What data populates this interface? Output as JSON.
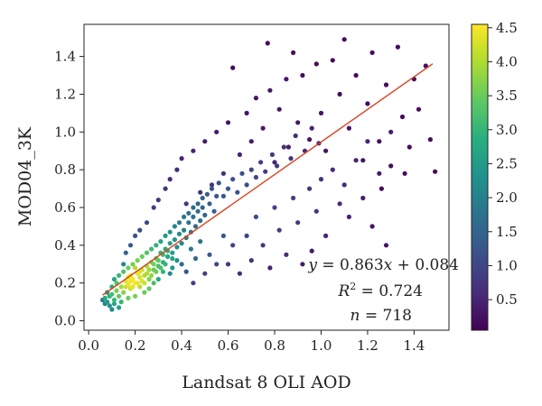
{
  "chart_data": {
    "type": "scatter",
    "title": "",
    "xlabel": "Landsat 8 OLI AOD",
    "ylabel": "MOD04_3K",
    "xlim": [
      -0.02,
      1.55
    ],
    "ylim": [
      -0.05,
      1.57
    ],
    "x_ticks": [
      0.0,
      0.2,
      0.4,
      0.6,
      0.8,
      1.0,
      1.2,
      1.4
    ],
    "x_tick_labels": [
      "0.0",
      "0.2",
      "0.4",
      "0.6",
      "0.8",
      "1.0",
      "1.2",
      "1.4"
    ],
    "y_ticks": [
      0.0,
      0.2,
      0.4,
      0.6,
      0.8,
      1.0,
      1.2,
      1.4
    ],
    "y_tick_labels": [
      "0.0",
      "0.2",
      "0.4",
      "0.6",
      "0.8",
      "1.0",
      "1.2",
      "1.4"
    ],
    "grid": false,
    "point_color": "viridis density",
    "regression": {
      "slope": 0.863,
      "intercept": 0.084,
      "x_range": [
        0.06,
        1.48
      ],
      "color": "#d9411e"
    },
    "annotations": [
      "y = 0.863x + 0.084",
      "R2 = 0.724",
      "n = 718"
    ],
    "colorbar": {
      "colormap": "viridis",
      "range": [
        0.05,
        4.55
      ],
      "ticks": [
        0.5,
        1.0,
        1.5,
        2.0,
        2.5,
        3.0,
        3.5,
        4.0,
        4.5
      ],
      "tick_labels": [
        "0.5",
        "1.0",
        "1.5",
        "2.0",
        "2.5",
        "3.0",
        "3.5",
        "4.0",
        "4.5"
      ]
    },
    "points": [
      [
        0.08,
        0.1,
        2.5
      ],
      [
        0.07,
        0.12,
        2.8
      ],
      [
        0.09,
        0.08,
        2.3
      ],
      [
        0.1,
        0.14,
        3.2
      ],
      [
        0.11,
        0.11,
        3.0
      ],
      [
        0.12,
        0.16,
        3.6
      ],
      [
        0.13,
        0.13,
        3.4
      ],
      [
        0.12,
        0.2,
        3.3
      ],
      [
        0.14,
        0.18,
        3.9
      ],
      [
        0.15,
        0.15,
        3.7
      ],
      [
        0.16,
        0.21,
        4.3
      ],
      [
        0.17,
        0.19,
        4.4
      ],
      [
        0.18,
        0.17,
        4.2
      ],
      [
        0.18,
        0.24,
        4.4
      ],
      [
        0.19,
        0.22,
        4.5
      ],
      [
        0.2,
        0.2,
        4.5
      ],
      [
        0.21,
        0.25,
        4.4
      ],
      [
        0.22,
        0.23,
        4.3
      ],
      [
        0.22,
        0.18,
        4.1
      ],
      [
        0.23,
        0.27,
        4.2
      ],
      [
        0.24,
        0.24,
        4.0
      ],
      [
        0.25,
        0.29,
        3.9
      ],
      [
        0.26,
        0.22,
        3.7
      ],
      [
        0.27,
        0.31,
        3.6
      ],
      [
        0.28,
        0.27,
        3.5
      ],
      [
        0.29,
        0.33,
        3.3
      ],
      [
        0.3,
        0.29,
        3.2
      ],
      [
        0.31,
        0.36,
        3.0
      ],
      [
        0.32,
        0.31,
        2.9
      ],
      [
        0.33,
        0.38,
        2.8
      ],
      [
        0.34,
        0.34,
        2.7
      ],
      [
        0.35,
        0.41,
        2.6
      ],
      [
        0.36,
        0.36,
        2.5
      ],
      [
        0.37,
        0.43,
        2.4
      ],
      [
        0.38,
        0.39,
        2.3
      ],
      [
        0.39,
        0.46,
        2.2
      ],
      [
        0.4,
        0.41,
        2.1
      ],
      [
        0.41,
        0.48,
        2.0
      ],
      [
        0.42,
        0.44,
        1.9
      ],
      [
        0.43,
        0.52,
        1.8
      ],
      [
        0.44,
        0.47,
        1.8
      ],
      [
        0.45,
        0.55,
        1.7
      ],
      [
        0.46,
        0.5,
        1.7
      ],
      [
        0.47,
        0.58,
        1.6
      ],
      [
        0.48,
        0.53,
        1.6
      ],
      [
        0.49,
        0.6,
        1.5
      ],
      [
        0.5,
        0.56,
        1.5
      ],
      [
        0.52,
        0.62,
        1.4
      ],
      [
        0.54,
        0.58,
        1.4
      ],
      [
        0.55,
        0.66,
        1.3
      ],
      [
        0.15,
        0.3,
        2.1
      ],
      [
        0.16,
        0.36,
        1.5
      ],
      [
        0.18,
        0.4,
        1.3
      ],
      [
        0.2,
        0.45,
        1.2
      ],
      [
        0.22,
        0.48,
        1.1
      ],
      [
        0.25,
        0.52,
        1.0
      ],
      [
        0.28,
        0.6,
        0.9
      ],
      [
        0.3,
        0.64,
        0.8
      ],
      [
        0.33,
        0.7,
        0.7
      ],
      [
        0.35,
        0.75,
        0.6
      ],
      [
        0.38,
        0.8,
        0.6
      ],
      [
        0.4,
        0.86,
        0.5
      ],
      [
        0.42,
        0.62,
        0.8
      ],
      [
        0.45,
        0.9,
        0.5
      ],
      [
        0.48,
        0.68,
        0.7
      ],
      [
        0.5,
        0.95,
        0.4
      ],
      [
        0.53,
        0.72,
        0.7
      ],
      [
        0.55,
        1.0,
        0.4
      ],
      [
        0.58,
        0.78,
        0.6
      ],
      [
        0.6,
        1.05,
        0.3
      ],
      [
        0.62,
        1.34,
        0.2
      ],
      [
        0.65,
        0.88,
        0.5
      ],
      [
        0.68,
        1.1,
        0.3
      ],
      [
        0.7,
        0.95,
        0.4
      ],
      [
        0.72,
        1.18,
        0.3
      ],
      [
        0.75,
        1.02,
        0.4
      ],
      [
        0.77,
        1.47,
        0.2
      ],
      [
        0.78,
        1.22,
        0.3
      ],
      [
        0.8,
        0.84,
        0.5
      ],
      [
        0.82,
        1.12,
        0.3
      ],
      [
        0.85,
        1.28,
        0.3
      ],
      [
        0.86,
        0.92,
        0.4
      ],
      [
        0.88,
        1.42,
        0.2
      ],
      [
        0.9,
        1.05,
        0.3
      ],
      [
        0.92,
        1.3,
        0.2
      ],
      [
        0.95,
        0.96,
        0.3
      ],
      [
        0.98,
        1.36,
        0.2
      ],
      [
        1.0,
        1.1,
        0.3
      ],
      [
        1.02,
        0.9,
        0.3
      ],
      [
        1.05,
        1.38,
        0.2
      ],
      [
        1.08,
        1.2,
        0.2
      ],
      [
        1.1,
        1.49,
        0.2
      ],
      [
        1.12,
        1.02,
        0.3
      ],
      [
        1.15,
        1.3,
        0.2
      ],
      [
        1.18,
        0.85,
        0.3
      ],
      [
        1.2,
        1.15,
        0.2
      ],
      [
        1.22,
        1.42,
        0.2
      ],
      [
        1.25,
        0.95,
        0.2
      ],
      [
        1.28,
        1.25,
        0.2
      ],
      [
        1.3,
        0.82,
        0.2
      ],
      [
        1.33,
        1.45,
        0.2
      ],
      [
        1.35,
        1.08,
        0.2
      ],
      [
        1.38,
        0.92,
        0.2
      ],
      [
        1.4,
        1.28,
        0.2
      ],
      [
        1.42,
        1.12,
        0.2
      ],
      [
        1.45,
        1.35,
        0.2
      ],
      [
        1.47,
        0.96,
        0.2
      ],
      [
        1.49,
        0.79,
        0.2
      ],
      [
        1.36,
        0.78,
        0.2
      ],
      [
        1.26,
        0.7,
        0.2
      ],
      [
        0.6,
        0.3,
        0.8
      ],
      [
        0.62,
        0.4,
        1.0
      ],
      [
        0.65,
        0.25,
        0.6
      ],
      [
        0.68,
        0.45,
        1.0
      ],
      [
        0.7,
        0.32,
        0.7
      ],
      [
        0.72,
        0.55,
        1.1
      ],
      [
        0.75,
        0.4,
        0.8
      ],
      [
        0.78,
        0.28,
        0.5
      ],
      [
        0.8,
        0.6,
        1.0
      ],
      [
        0.82,
        0.48,
        0.9
      ],
      [
        0.85,
        0.35,
        0.6
      ],
      [
        0.88,
        0.65,
        0.9
      ],
      [
        0.9,
        0.52,
        0.8
      ],
      [
        0.92,
        0.3,
        0.4
      ],
      [
        0.95,
        0.7,
        0.8
      ],
      [
        0.96,
        0.37,
        0.4
      ],
      [
        0.98,
        0.58,
        0.7
      ],
      [
        1.0,
        0.75,
        0.7
      ],
      [
        1.02,
        0.45,
        0.5
      ],
      [
        1.05,
        0.8,
        0.6
      ],
      [
        1.08,
        0.62,
        0.6
      ],
      [
        1.1,
        0.72,
        0.6
      ],
      [
        1.12,
        0.55,
        0.5
      ],
      [
        1.15,
        0.85,
        0.5
      ],
      [
        1.18,
        0.65,
        0.4
      ],
      [
        1.2,
        0.95,
        0.5
      ],
      [
        1.22,
        0.5,
        0.3
      ],
      [
        1.25,
        0.78,
        0.4
      ],
      [
        1.28,
        0.4,
        0.3
      ],
      [
        1.3,
        1.0,
        0.4
      ],
      [
        0.45,
        0.2,
        0.9
      ],
      [
        0.5,
        0.25,
        0.9
      ],
      [
        0.52,
        0.35,
        1.3
      ],
      [
        0.55,
        0.3,
        1.0
      ],
      [
        0.58,
        0.45,
        1.3
      ],
      [
        0.4,
        0.3,
        1.6
      ],
      [
        0.42,
        0.26,
        1.3
      ],
      [
        0.44,
        0.38,
        1.9
      ],
      [
        0.46,
        0.33,
        1.6
      ],
      [
        0.48,
        0.42,
        1.8
      ],
      [
        0.35,
        0.25,
        2.2
      ],
      [
        0.36,
        0.28,
        2.4
      ],
      [
        0.38,
        0.32,
        2.3
      ],
      [
        0.3,
        0.22,
        2.8
      ],
      [
        0.32,
        0.26,
        3.0
      ],
      [
        0.28,
        0.2,
        3.2
      ],
      [
        0.26,
        0.17,
        3.4
      ],
      [
        0.24,
        0.15,
        3.5
      ],
      [
        0.2,
        0.13,
        3.6
      ],
      [
        0.17,
        0.12,
        3.5
      ],
      [
        0.14,
        0.1,
        3.0
      ],
      [
        0.11,
        0.09,
        2.7
      ],
      [
        0.1,
        0.06,
        2.2
      ],
      [
        0.13,
        0.07,
        2.6
      ],
      [
        0.09,
        0.13,
        2.9
      ],
      [
        0.08,
        0.15,
        2.4
      ],
      [
        0.07,
        0.09,
        2.1
      ],
      [
        0.06,
        0.11,
        1.9
      ],
      [
        0.1,
        0.18,
        2.9
      ],
      [
        0.11,
        0.22,
        2.7
      ],
      [
        0.13,
        0.24,
        3.0
      ],
      [
        0.15,
        0.26,
        3.3
      ],
      [
        0.17,
        0.28,
        3.5
      ],
      [
        0.19,
        0.3,
        3.6
      ],
      [
        0.21,
        0.32,
        3.6
      ],
      [
        0.23,
        0.34,
        3.5
      ],
      [
        0.25,
        0.36,
        3.3
      ],
      [
        0.27,
        0.38,
        3.1
      ],
      [
        0.29,
        0.4,
        2.9
      ],
      [
        0.31,
        0.42,
        2.7
      ],
      [
        0.33,
        0.45,
        2.5
      ],
      [
        0.35,
        0.47,
        2.3
      ],
      [
        0.37,
        0.5,
        2.1
      ],
      [
        0.39,
        0.52,
        1.9
      ],
      [
        0.41,
        0.55,
        1.8
      ],
      [
        0.43,
        0.57,
        1.7
      ],
      [
        0.45,
        0.6,
        1.6
      ],
      [
        0.47,
        0.62,
        1.5
      ],
      [
        0.49,
        0.65,
        1.4
      ],
      [
        0.51,
        0.67,
        1.3
      ],
      [
        0.53,
        0.7,
        1.2
      ],
      [
        0.56,
        0.73,
        1.1
      ],
      [
        0.58,
        0.66,
        1.3
      ],
      [
        0.6,
        0.7,
        1.3
      ],
      [
        0.62,
        0.75,
        1.2
      ],
      [
        0.64,
        0.68,
        1.2
      ],
      [
        0.66,
        0.78,
        1.1
      ],
      [
        0.68,
        0.72,
        1.1
      ],
      [
        0.7,
        0.8,
        1.0
      ],
      [
        0.72,
        0.76,
        1.0
      ],
      [
        0.74,
        0.84,
        0.9
      ],
      [
        0.76,
        0.79,
        0.9
      ],
      [
        0.79,
        0.88,
        0.8
      ],
      [
        0.81,
        0.82,
        0.8
      ],
      [
        0.84,
        0.92,
        0.7
      ],
      [
        0.87,
        0.86,
        0.7
      ],
      [
        0.89,
        0.98,
        0.6
      ],
      [
        0.93,
        0.9,
        0.6
      ],
      [
        0.96,
        1.02,
        0.5
      ],
      [
        0.99,
        0.94,
        0.5
      ],
      [
        0.2,
        0.28,
        4.0
      ],
      [
        0.21,
        0.2,
        4.4
      ],
      [
        0.23,
        0.21,
        4.3
      ],
      [
        0.19,
        0.18,
        4.4
      ],
      [
        0.18,
        0.21,
        4.5
      ],
      [
        0.22,
        0.26,
        4.3
      ],
      [
        0.24,
        0.2,
        4.2
      ],
      [
        0.17,
        0.23,
        4.4
      ],
      [
        0.16,
        0.18,
        4.2
      ],
      [
        0.25,
        0.25,
        4.0
      ],
      [
        0.26,
        0.27,
        3.9
      ],
      [
        0.27,
        0.24,
        3.8
      ],
      [
        0.28,
        0.3,
        3.6
      ],
      [
        0.29,
        0.26,
        3.5
      ],
      [
        0.3,
        0.32,
        3.4
      ],
      [
        0.31,
        0.28,
        3.3
      ],
      [
        0.32,
        0.35,
        3.1
      ],
      [
        0.33,
        0.3,
        3.0
      ],
      [
        0.34,
        0.37,
        2.9
      ],
      [
        0.36,
        0.33,
        2.7
      ]
    ]
  }
}
